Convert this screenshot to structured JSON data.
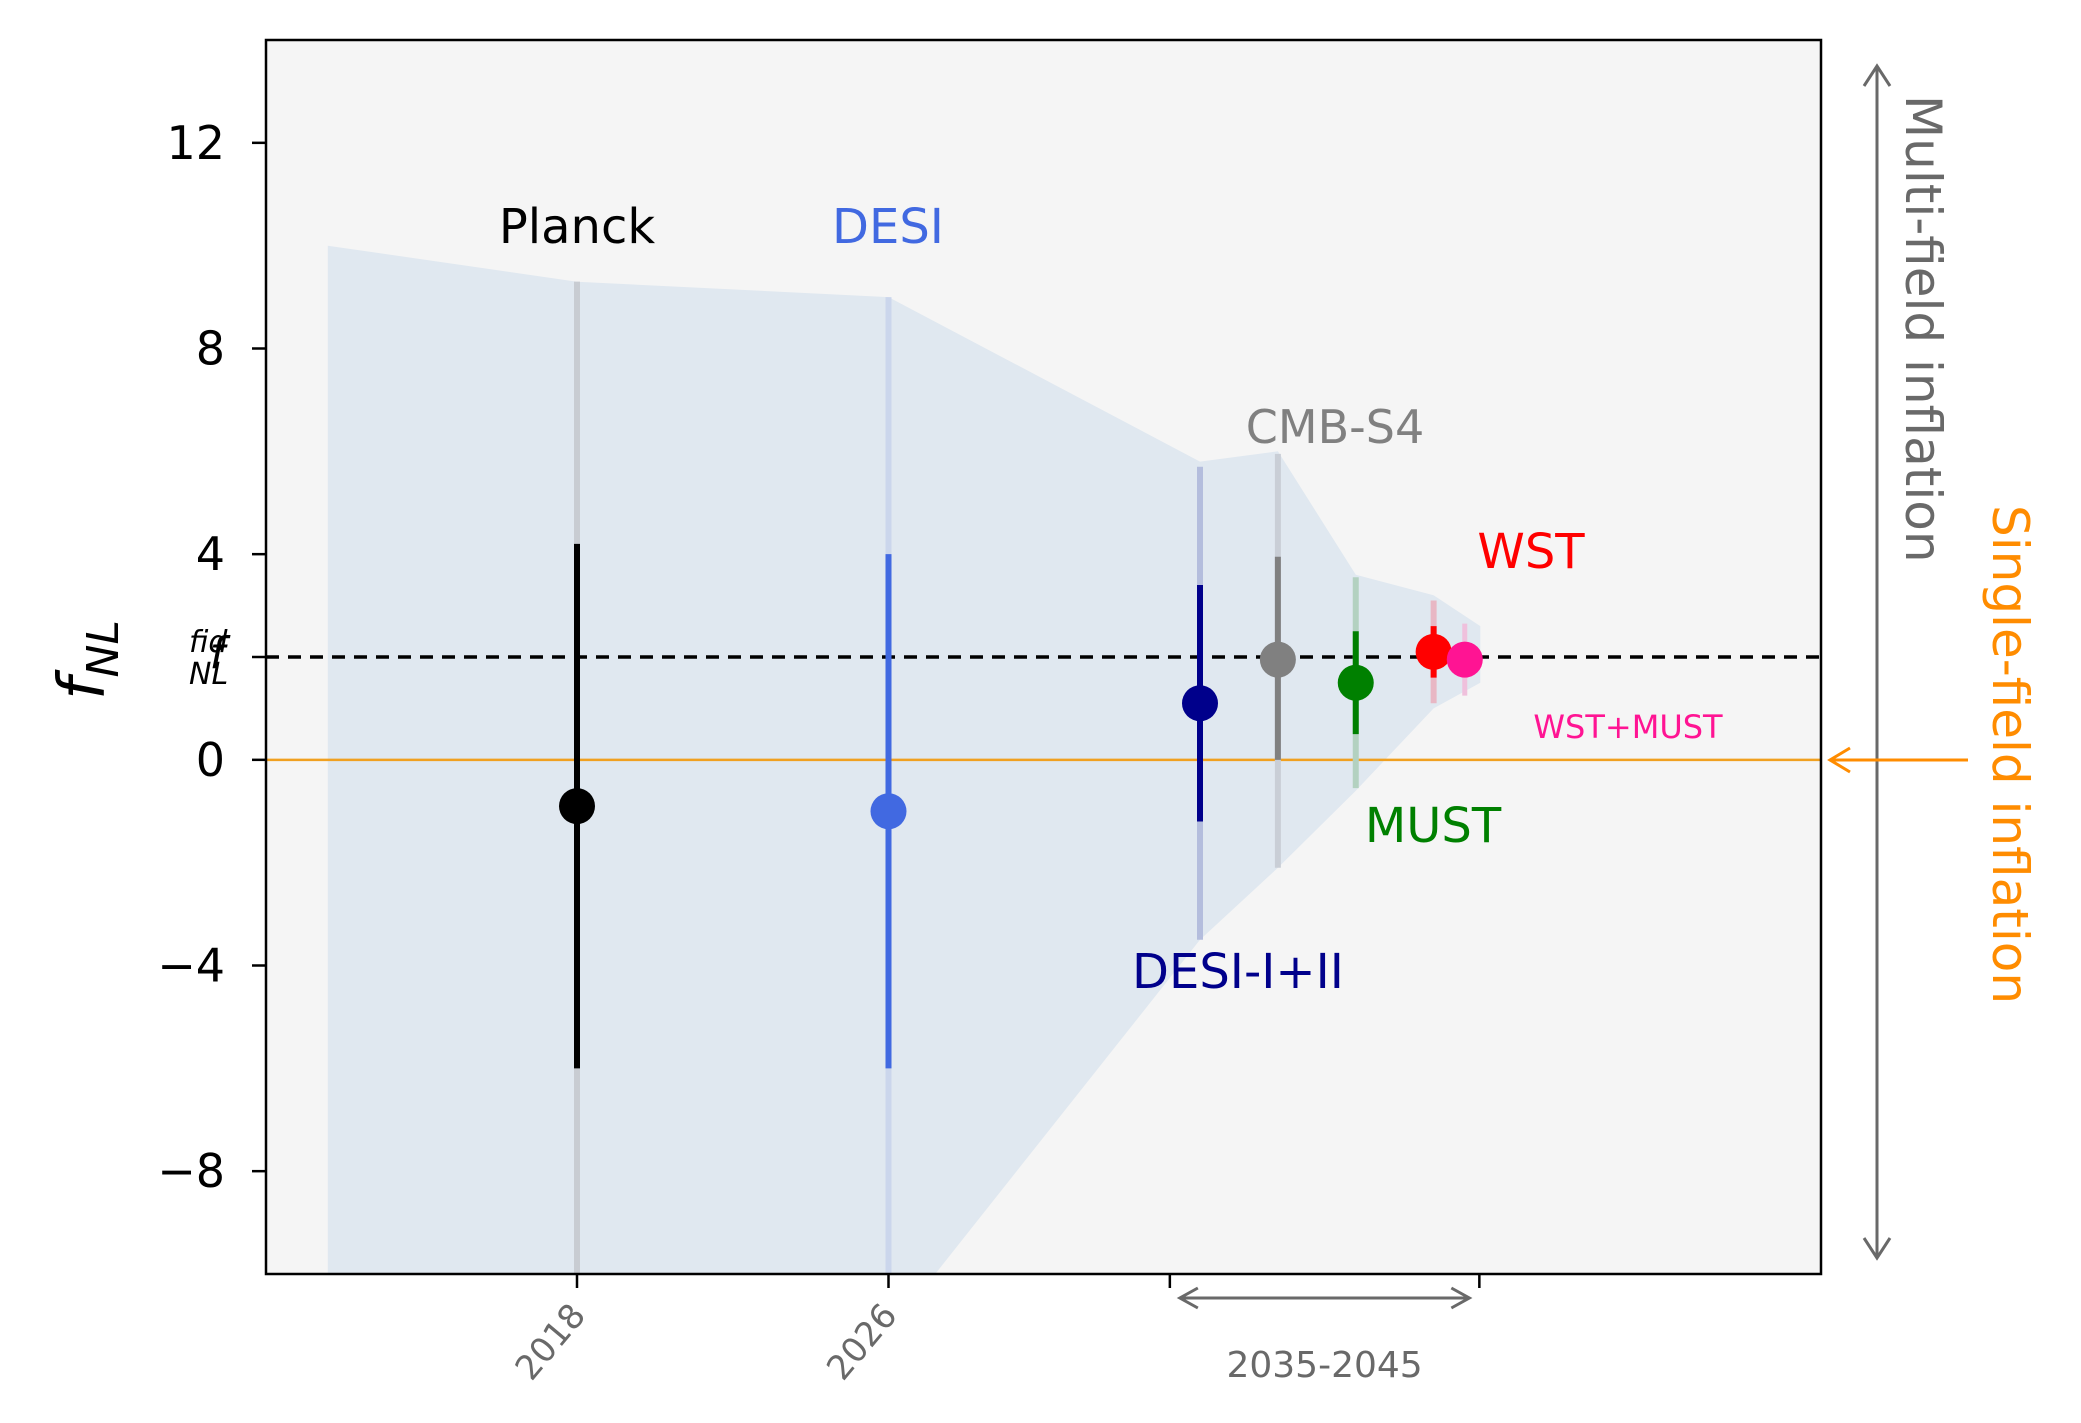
{
  "chart_data": {
    "type": "scatter",
    "xlabel": "",
    "ylabel": "f",
    "ylabel_sub": "NL",
    "ylim": [
      -10,
      14
    ],
    "yticks": [
      -8,
      -4,
      0,
      4,
      8,
      12
    ],
    "ytick_labels": [
      "−8",
      "−4",
      "0",
      "4",
      "8",
      "12"
    ],
    "fid_label": "f",
    "fid_sup": "fid",
    "fid_sub": "NL",
    "fid_value": 2,
    "single_field_value": 0,
    "xticks": [
      {
        "pos": 0,
        "label": "2018"
      },
      {
        "pos": 1,
        "label": "2026"
      }
    ],
    "future_range": {
      "start": 1.9,
      "end": 2.9,
      "label": "2035-2045"
    },
    "series": [
      {
        "name": "Planck",
        "x": 0,
        "y": -0.9,
        "err_low": 5.1,
        "err_high": 5.1,
        "wide_low": 11.0,
        "wide_high": 10.2,
        "color": "#000000",
        "faint": "#c8ccd2",
        "label_pos": "above"
      },
      {
        "name": "DESI",
        "x": 1,
        "y": -1.0,
        "err_low": 5.0,
        "err_high": 5.0,
        "wide_low": 11.0,
        "wide_high": 10.0,
        "color": "#4169e1",
        "faint": "#cbd6ec",
        "label_pos": "above"
      },
      {
        "name": "DESI-I+II",
        "x": 2.0,
        "y": 1.1,
        "err_low": 2.3,
        "err_high": 2.3,
        "wide_low": 4.6,
        "wide_high": 4.6,
        "color": "#00008b",
        "faint": "#b4bddd",
        "label_pos": "below"
      },
      {
        "name": "CMB-S4",
        "x": 2.25,
        "y": 1.95,
        "err_low": 1.95,
        "err_high": 2.0,
        "wide_low": 4.05,
        "wide_high": 4.0,
        "color": "#808080",
        "faint": "#c9ced6",
        "label_pos": "above"
      },
      {
        "name": "MUST",
        "x": 2.5,
        "y": 1.5,
        "err_low": 1.0,
        "err_high": 1.0,
        "wide_low": 2.05,
        "wide_high": 2.05,
        "color": "#008000",
        "faint": "#b3d1c0",
        "label_pos": "below"
      },
      {
        "name": "WST",
        "x": 2.75,
        "y": 2.1,
        "err_low": 0.5,
        "err_high": 0.5,
        "wide_low": 1.0,
        "wide_high": 1.0,
        "color": "#ff0000",
        "faint": "#e8b7c4",
        "label_pos": "above"
      },
      {
        "name": "WST+MUST",
        "x": 2.85,
        "y": 1.95,
        "err_low": 0.3,
        "err_high": 0.3,
        "wide_low": 0.7,
        "wide_high": 0.7,
        "color": "#ff1493",
        "faint": "#efc0dc",
        "label_pos": "below"
      }
    ],
    "band_upper": [
      [
        -0.8,
        10.0
      ],
      [
        0,
        9.3
      ],
      [
        1,
        9.0
      ],
      [
        2.0,
        5.8
      ],
      [
        2.25,
        6.0
      ],
      [
        2.5,
        3.6
      ],
      [
        2.75,
        3.2
      ],
      [
        2.9,
        2.6
      ]
    ],
    "band_lower": [
      [
        2.9,
        1.5
      ],
      [
        2.75,
        1.0
      ],
      [
        2.5,
        -0.6
      ],
      [
        2.25,
        -2.1
      ],
      [
        2.0,
        -3.5
      ],
      [
        1.15,
        -10.0
      ],
      [
        -0.8,
        -10.0
      ]
    ],
    "annotations": {
      "multi_field": "Multi-field inflation",
      "single_field": "Single-field inflation"
    },
    "colors": {
      "plot_bg": "#f5f5f5",
      "band": "#e0e8f0",
      "fid_line": "#000000",
      "zero_line": "#f0a020",
      "single_field": "#ff8c00",
      "multi_field": "#696969"
    }
  }
}
